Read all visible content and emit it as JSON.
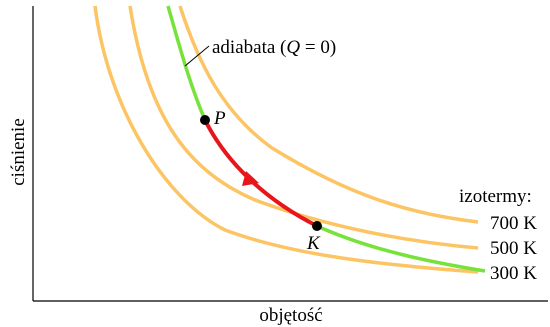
{
  "axes": {
    "xlabel": "objętość",
    "ylabel": "ciśnienie"
  },
  "adiabat": {
    "label_prefix": "adiabata (",
    "label_q": "Q",
    "label_suffix": " = 0)"
  },
  "points": {
    "start": "P",
    "end": "K"
  },
  "isotherms": {
    "header": "izotermy:",
    "labels": [
      "700 K",
      "500 K",
      "300 K"
    ]
  },
  "colors": {
    "isotherm": "#fcc462",
    "adiabat": "#76e23a",
    "process": "#e8161b",
    "point": "#000000"
  }
}
